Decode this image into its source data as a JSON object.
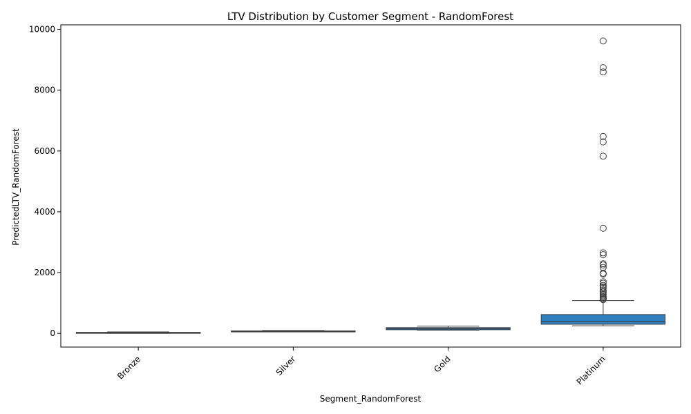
{
  "chart_data": {
    "type": "box",
    "title": "LTV Distribution by Customer Segment - RandomForest",
    "xlabel": "Segment_RandomForest",
    "ylabel": "PredictedLTV_RandomForest",
    "ylim": [
      -450,
      10150
    ],
    "yticks": [
      0,
      2000,
      4000,
      6000,
      8000,
      10000
    ],
    "tick_label_rotation_deg": -45,
    "grid": false,
    "box_color": "#2f7fbf",
    "line_color": "#3d3d3d",
    "categories": [
      "Bronze",
      "Silver",
      "Gold",
      "Platinum"
    ],
    "boxes": [
      {
        "category": "Bronze",
        "whisker_low": 0,
        "q1": 10,
        "median": 22,
        "q3": 35,
        "whisker_high": 50,
        "outliers": []
      },
      {
        "category": "Silver",
        "whisker_low": 55,
        "q1": 62,
        "median": 72,
        "q3": 82,
        "whisker_high": 95,
        "outliers": []
      },
      {
        "category": "Gold",
        "whisker_low": 105,
        "q1": 120,
        "median": 150,
        "q3": 190,
        "whisker_high": 240,
        "outliers": []
      },
      {
        "category": "Platinum",
        "whisker_low": 250,
        "q1": 300,
        "median": 400,
        "q3": 620,
        "whisker_high": 1080,
        "outliers": [
          9620,
          8740,
          8600,
          6480,
          6300,
          5830,
          3460,
          2650,
          2590,
          2290,
          2250,
          2170,
          1980,
          1950,
          1700,
          1650,
          1580,
          1530,
          1480,
          1420,
          1370,
          1320,
          1280,
          1240,
          1200,
          1170,
          1140,
          1110
        ]
      }
    ]
  }
}
